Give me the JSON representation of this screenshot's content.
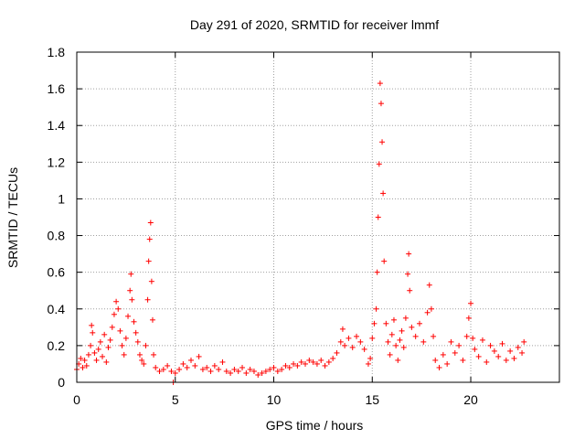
{
  "chart_data": {
    "type": "scatter",
    "title": "Day 291 of 2020, SRMTID for receiver lmmf",
    "xlabel": "GPS time / hours",
    "ylabel": "SRMTID / TECUs",
    "xlim": [
      0,
      24.5
    ],
    "ylim": [
      0,
      1.8
    ],
    "grid": true,
    "marker": "plus",
    "color": "#ff0000",
    "x_ticks": [
      0,
      5,
      10,
      15,
      20
    ],
    "x_tick_labels": [
      "0",
      "5",
      "10",
      "15",
      "20"
    ],
    "y_ticks": [
      0,
      0.2,
      0.4,
      0.6,
      0.8,
      1.0,
      1.2,
      1.4,
      1.6,
      1.8
    ],
    "y_tick_labels": [
      "0",
      "0.2",
      "0.4",
      "0.6",
      "0.8",
      "1",
      "1.2",
      "1.4",
      "1.6",
      "1.8"
    ],
    "series": [
      {
        "name": "SRMTID",
        "points": [
          [
            0.0,
            0.07
          ],
          [
            0.1,
            0.1
          ],
          [
            0.2,
            0.13
          ],
          [
            0.3,
            0.08
          ],
          [
            0.4,
            0.12
          ],
          [
            0.5,
            0.09
          ],
          [
            0.6,
            0.15
          ],
          [
            0.7,
            0.2
          ],
          [
            0.75,
            0.31
          ],
          [
            0.8,
            0.27
          ],
          [
            0.9,
            0.16
          ],
          [
            1.0,
            0.12
          ],
          [
            1.1,
            0.18
          ],
          [
            1.2,
            0.22
          ],
          [
            1.3,
            0.14
          ],
          [
            1.4,
            0.26
          ],
          [
            1.5,
            0.11
          ],
          [
            1.6,
            0.19
          ],
          [
            1.7,
            0.23
          ],
          [
            1.8,
            0.3
          ],
          [
            1.9,
            0.37
          ],
          [
            2.0,
            0.44
          ],
          [
            2.1,
            0.4
          ],
          [
            2.2,
            0.28
          ],
          [
            2.3,
            0.2
          ],
          [
            2.4,
            0.15
          ],
          [
            2.5,
            0.24
          ],
          [
            2.6,
            0.36
          ],
          [
            2.7,
            0.5
          ],
          [
            2.75,
            0.59
          ],
          [
            2.8,
            0.45
          ],
          [
            2.9,
            0.33
          ],
          [
            3.0,
            0.27
          ],
          [
            3.1,
            0.22
          ],
          [
            3.2,
            0.15
          ],
          [
            3.3,
            0.12
          ],
          [
            3.4,
            0.1
          ],
          [
            3.5,
            0.2
          ],
          [
            3.6,
            0.45
          ],
          [
            3.65,
            0.66
          ],
          [
            3.7,
            0.78
          ],
          [
            3.75,
            0.87
          ],
          [
            3.8,
            0.55
          ],
          [
            3.85,
            0.34
          ],
          [
            3.9,
            0.15
          ],
          [
            4.0,
            0.08
          ],
          [
            4.2,
            0.06
          ],
          [
            4.4,
            0.07
          ],
          [
            4.6,
            0.09
          ],
          [
            4.8,
            0.06
          ],
          [
            4.9,
            0.0
          ],
          [
            5.0,
            0.05
          ],
          [
            5.2,
            0.07
          ],
          [
            5.4,
            0.1
          ],
          [
            5.6,
            0.08
          ],
          [
            5.8,
            0.12
          ],
          [
            6.0,
            0.09
          ],
          [
            6.2,
            0.14
          ],
          [
            6.4,
            0.07
          ],
          [
            6.6,
            0.08
          ],
          [
            6.8,
            0.06
          ],
          [
            7.0,
            0.09
          ],
          [
            7.2,
            0.07
          ],
          [
            7.4,
            0.11
          ],
          [
            7.6,
            0.06
          ],
          [
            7.8,
            0.05
          ],
          [
            8.0,
            0.07
          ],
          [
            8.2,
            0.06
          ],
          [
            8.4,
            0.08
          ],
          [
            8.6,
            0.05
          ],
          [
            8.8,
            0.07
          ],
          [
            9.0,
            0.06
          ],
          [
            9.2,
            0.04
          ],
          [
            9.4,
            0.05
          ],
          [
            9.6,
            0.06
          ],
          [
            9.8,
            0.07
          ],
          [
            10.0,
            0.08
          ],
          [
            10.2,
            0.06
          ],
          [
            10.4,
            0.07
          ],
          [
            10.6,
            0.09
          ],
          [
            10.8,
            0.08
          ],
          [
            11.0,
            0.1
          ],
          [
            11.2,
            0.09
          ],
          [
            11.4,
            0.11
          ],
          [
            11.6,
            0.1
          ],
          [
            11.8,
            0.12
          ],
          [
            12.0,
            0.11
          ],
          [
            12.2,
            0.1
          ],
          [
            12.4,
            0.12
          ],
          [
            12.6,
            0.09
          ],
          [
            12.8,
            0.11
          ],
          [
            13.0,
            0.13
          ],
          [
            13.2,
            0.16
          ],
          [
            13.4,
            0.22
          ],
          [
            13.5,
            0.29
          ],
          [
            13.6,
            0.2
          ],
          [
            13.8,
            0.24
          ],
          [
            14.0,
            0.19
          ],
          [
            14.2,
            0.25
          ],
          [
            14.4,
            0.22
          ],
          [
            14.6,
            0.18
          ],
          [
            14.8,
            0.1
          ],
          [
            14.9,
            0.13
          ],
          [
            15.0,
            0.24
          ],
          [
            15.1,
            0.32
          ],
          [
            15.2,
            0.4
          ],
          [
            15.25,
            0.6
          ],
          [
            15.3,
            0.9
          ],
          [
            15.35,
            1.19
          ],
          [
            15.4,
            1.63
          ],
          [
            15.45,
            1.52
          ],
          [
            15.5,
            1.31
          ],
          [
            15.55,
            1.03
          ],
          [
            15.6,
            0.66
          ],
          [
            15.7,
            0.32
          ],
          [
            15.8,
            0.22
          ],
          [
            15.9,
            0.15
          ],
          [
            16.0,
            0.26
          ],
          [
            16.1,
            0.34
          ],
          [
            16.2,
            0.2
          ],
          [
            16.3,
            0.12
          ],
          [
            16.4,
            0.23
          ],
          [
            16.5,
            0.28
          ],
          [
            16.6,
            0.19
          ],
          [
            16.7,
            0.35
          ],
          [
            16.8,
            0.59
          ],
          [
            16.85,
            0.7
          ],
          [
            16.9,
            0.5
          ],
          [
            17.0,
            0.3
          ],
          [
            17.2,
            0.25
          ],
          [
            17.4,
            0.32
          ],
          [
            17.6,
            0.22
          ],
          [
            17.8,
            0.38
          ],
          [
            17.9,
            0.53
          ],
          [
            18.0,
            0.4
          ],
          [
            18.1,
            0.25
          ],
          [
            18.2,
            0.12
          ],
          [
            18.4,
            0.08
          ],
          [
            18.6,
            0.15
          ],
          [
            18.8,
            0.1
          ],
          [
            19.0,
            0.22
          ],
          [
            19.2,
            0.16
          ],
          [
            19.4,
            0.2
          ],
          [
            19.6,
            0.12
          ],
          [
            19.8,
            0.25
          ],
          [
            19.9,
            0.35
          ],
          [
            20.0,
            0.43
          ],
          [
            20.1,
            0.24
          ],
          [
            20.2,
            0.18
          ],
          [
            20.4,
            0.14
          ],
          [
            20.6,
            0.23
          ],
          [
            20.8,
            0.11
          ],
          [
            21.0,
            0.2
          ],
          [
            21.2,
            0.17
          ],
          [
            21.4,
            0.14
          ],
          [
            21.6,
            0.21
          ],
          [
            21.8,
            0.12
          ],
          [
            22.0,
            0.17
          ],
          [
            22.2,
            0.13
          ],
          [
            22.4,
            0.19
          ],
          [
            22.6,
            0.16
          ],
          [
            22.7,
            0.22
          ]
        ]
      }
    ]
  }
}
